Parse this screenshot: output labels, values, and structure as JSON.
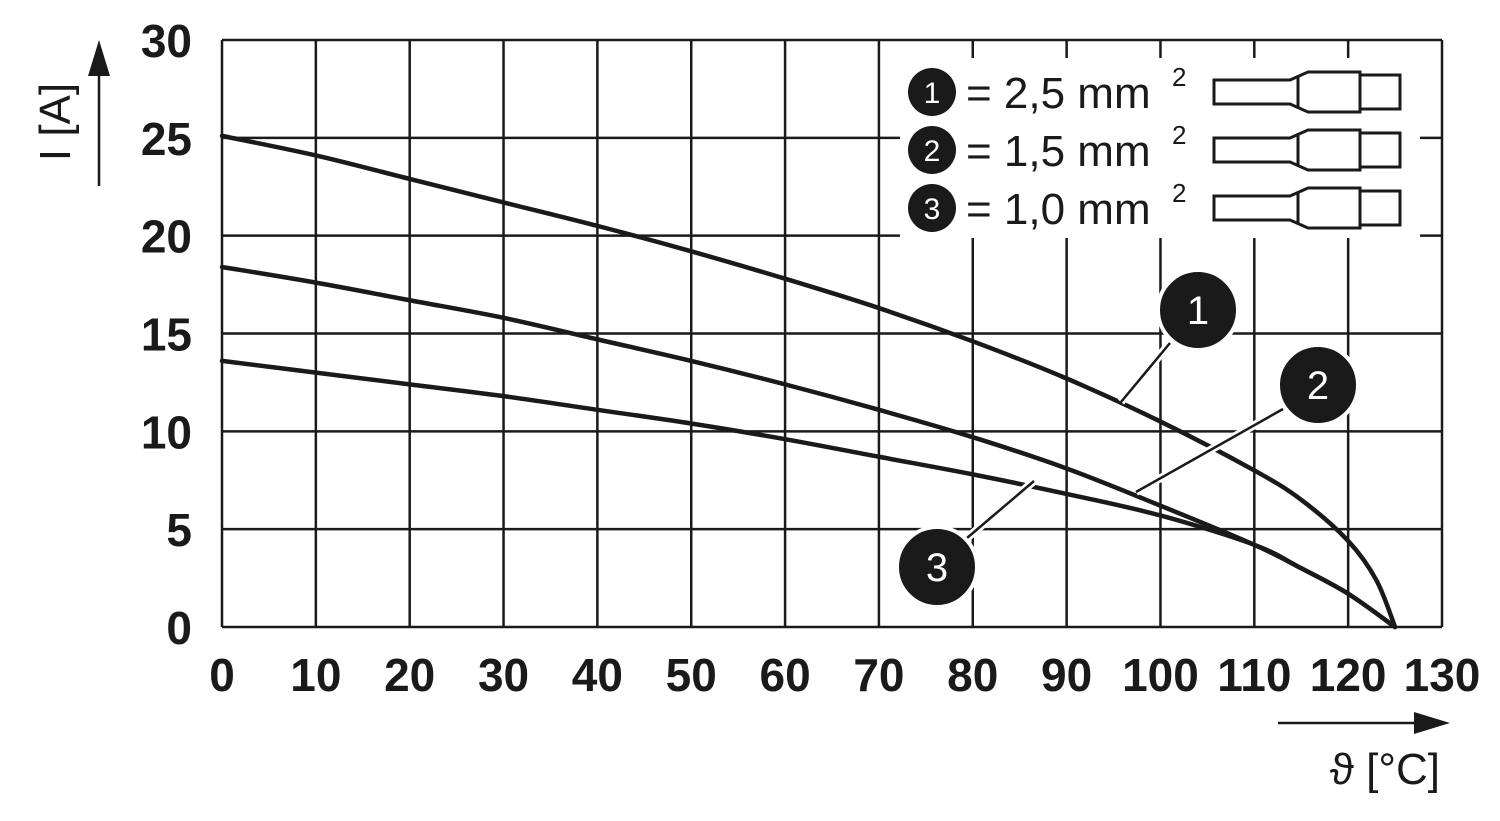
{
  "chart_data": {
    "type": "line",
    "xlabel": "ϑ [°C]",
    "ylabel": "I [A]",
    "xlim": [
      0,
      130
    ],
    "ylim": [
      0,
      30
    ],
    "x_ticks": [
      "0",
      "10",
      "20",
      "30",
      "40",
      "50",
      "60",
      "70",
      "80",
      "90",
      "100",
      "110",
      "120",
      "130"
    ],
    "y_ticks": [
      "0",
      "5",
      "10",
      "15",
      "20",
      "25",
      "30"
    ],
    "grid": true,
    "legend_position": "top-right",
    "series": [
      {
        "name": "1",
        "legend_label": "= 2,5 mm",
        "legend_sup": "2",
        "color": "#1a1a1a",
        "x": [
          0,
          10,
          20,
          30,
          40,
          50,
          60,
          70,
          80,
          90,
          100,
          110,
          115,
          120,
          123,
          125
        ],
        "y": [
          25.1,
          24.1,
          22.9,
          21.7,
          20.5,
          19.2,
          17.8,
          16.3,
          14.6,
          12.7,
          10.5,
          8.0,
          6.5,
          4.4,
          2.4,
          0
        ]
      },
      {
        "name": "2",
        "legend_label": "= 1,5 mm",
        "legend_sup": "2",
        "color": "#1a1a1a",
        "x": [
          0,
          10,
          20,
          30,
          40,
          50,
          60,
          70,
          80,
          90,
          100,
          110,
          115,
          120,
          125
        ],
        "y": [
          18.4,
          17.6,
          16.7,
          15.8,
          14.7,
          13.6,
          12.4,
          11.1,
          9.7,
          8.1,
          6.2,
          4.2,
          3.0,
          1.7,
          0
        ]
      },
      {
        "name": "3",
        "legend_label": "= 1,0 mm",
        "legend_sup": "2",
        "color": "#1a1a1a",
        "x": [
          0,
          10,
          20,
          30,
          40,
          50,
          60,
          70,
          80,
          90,
          100,
          110,
          115,
          120,
          125
        ],
        "y": [
          13.6,
          13.0,
          12.4,
          11.8,
          11.1,
          10.4,
          9.6,
          8.7,
          7.8,
          6.8,
          5.7,
          4.2,
          3.0,
          1.7,
          0
        ]
      }
    ]
  }
}
